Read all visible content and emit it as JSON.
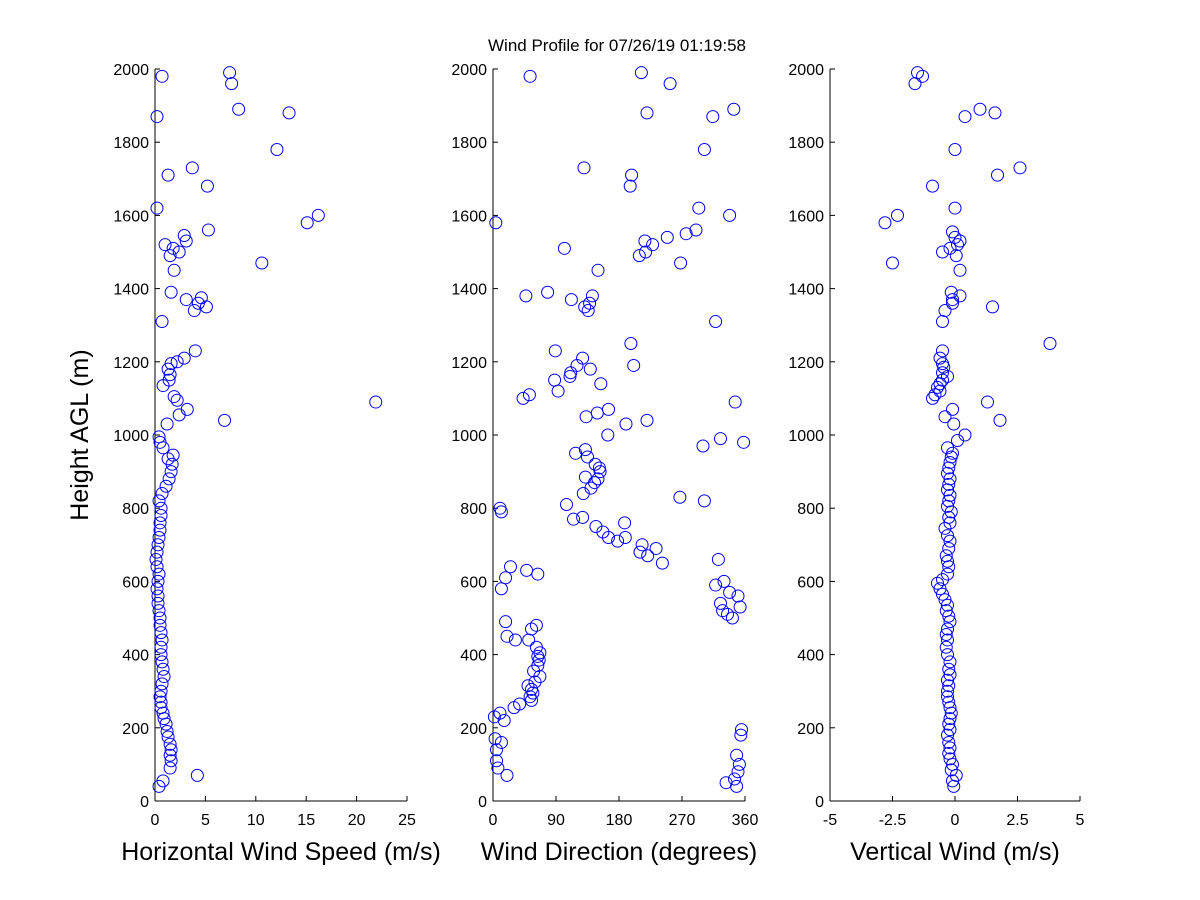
{
  "title": "Wind Profile for  07/26/19 01:19:58",
  "marker_color": "#0000ff",
  "chart_data": [
    {
      "type": "scatter",
      "xlabel": "Horizontal Wind Speed (m/s)",
      "ylabel": "Height AGL (m)",
      "xlim": [
        0,
        25
      ],
      "ylim": [
        0,
        2000
      ],
      "xticks": [
        0,
        5,
        10,
        15,
        20,
        25
      ],
      "xtick_labels": [
        "0",
        "5",
        "10",
        "15",
        "20",
        "25"
      ],
      "yticks": [
        0,
        200,
        400,
        600,
        800,
        1000,
        1200,
        1400,
        1600,
        1800,
        2000
      ],
      "ytick_labels": [
        "0",
        "200",
        "400",
        "600",
        "800",
        "1000",
        "1200",
        "1400",
        "1600",
        "1800",
        "2000"
      ],
      "grid": false,
      "points": [
        [
          0.4,
          40
        ],
        [
          0.8,
          55
        ],
        [
          4.2,
          70
        ],
        [
          1.5,
          90
        ],
        [
          1.6,
          110
        ],
        [
          1.5,
          125
        ],
        [
          1.6,
          140
        ],
        [
          1.5,
          155
        ],
        [
          1.3,
          175
        ],
        [
          1.2,
          190
        ],
        [
          1.1,
          210
        ],
        [
          0.9,
          225
        ],
        [
          0.8,
          240
        ],
        [
          0.6,
          255
        ],
        [
          0.6,
          270
        ],
        [
          0.5,
          285
        ],
        [
          0.6,
          300
        ],
        [
          0.7,
          320
        ],
        [
          0.9,
          340
        ],
        [
          0.8,
          360
        ],
        [
          0.7,
          380
        ],
        [
          0.6,
          400
        ],
        [
          0.6,
          420
        ],
        [
          0.7,
          440
        ],
        [
          0.6,
          460
        ],
        [
          0.5,
          480
        ],
        [
          0.5,
          500
        ],
        [
          0.4,
          520
        ],
        [
          0.3,
          540
        ],
        [
          0.3,
          560
        ],
        [
          0.2,
          580
        ],
        [
          0.3,
          600
        ],
        [
          0.4,
          620
        ],
        [
          0.2,
          640
        ],
        [
          0.1,
          660
        ],
        [
          0.2,
          680
        ],
        [
          0.3,
          700
        ],
        [
          0.4,
          720
        ],
        [
          0.5,
          740
        ],
        [
          0.5,
          760
        ],
        [
          0.6,
          780
        ],
        [
          0.6,
          800
        ],
        [
          0.4,
          820
        ],
        [
          0.7,
          840
        ],
        [
          1.1,
          860
        ],
        [
          1.4,
          880
        ],
        [
          1.6,
          900
        ],
        [
          1.7,
          920
        ],
        [
          1.3,
          935
        ],
        [
          1.8,
          945
        ],
        [
          0.8,
          965
        ],
        [
          0.5,
          980
        ],
        [
          0.4,
          995
        ],
        [
          1.2,
          1030
        ],
        [
          6.9,
          1040
        ],
        [
          2.4,
          1055
        ],
        [
          3.2,
          1070
        ],
        [
          2.2,
          1095
        ],
        [
          1.9,
          1105
        ],
        [
          21.9,
          1090
        ],
        [
          0.8,
          1135
        ],
        [
          1.4,
          1150
        ],
        [
          1.5,
          1165
        ],
        [
          1.3,
          1180
        ],
        [
          1.6,
          1195
        ],
        [
          2.2,
          1200
        ],
        [
          2.9,
          1210
        ],
        [
          4.0,
          1230
        ],
        [
          0.7,
          1310
        ],
        [
          5.1,
          1350
        ],
        [
          3.9,
          1340
        ],
        [
          4.3,
          1360
        ],
        [
          4.6,
          1375
        ],
        [
          3.1,
          1370
        ],
        [
          1.6,
          1390
        ],
        [
          10.6,
          1470
        ],
        [
          1.9,
          1450
        ],
        [
          1.5,
          1490
        ],
        [
          1.8,
          1510
        ],
        [
          1.0,
          1520
        ],
        [
          2.4,
          1500
        ],
        [
          3.1,
          1530
        ],
        [
          2.9,
          1545
        ],
        [
          5.3,
          1560
        ],
        [
          15.1,
          1580
        ],
        [
          16.2,
          1600
        ],
        [
          0.2,
          1620
        ],
        [
          5.2,
          1680
        ],
        [
          1.3,
          1710
        ],
        [
          3.7,
          1730
        ],
        [
          12.1,
          1780
        ],
        [
          0.2,
          1870
        ],
        [
          8.3,
          1890
        ],
        [
          13.3,
          1880
        ],
        [
          7.6,
          1960
        ],
        [
          0.7,
          1980
        ],
        [
          7.4,
          1990
        ]
      ]
    },
    {
      "type": "scatter",
      "xlabel": "Wind Direction (degrees)",
      "ylabel": "",
      "xlim": [
        0,
        360
      ],
      "ylim": [
        0,
        2000
      ],
      "xticks": [
        0,
        90,
        180,
        270,
        360
      ],
      "xtick_labels": [
        "0",
        "90",
        "180",
        "270",
        "360"
      ],
      "yticks": [
        0,
        200,
        400,
        600,
        800,
        1000,
        1200,
        1400,
        1600,
        1800,
        2000
      ],
      "ytick_labels": [
        "0",
        "200",
        "400",
        "600",
        "800",
        "1000",
        "1200",
        "1400",
        "1600",
        "1800",
        "2000"
      ],
      "grid": false,
      "points": [
        [
          348,
          40
        ],
        [
          333,
          50
        ],
        [
          345,
          60
        ],
        [
          20,
          70
        ],
        [
          350,
          80
        ],
        [
          7,
          90
        ],
        [
          352,
          100
        ],
        [
          5,
          110
        ],
        [
          348,
          125
        ],
        [
          5,
          140
        ],
        [
          12,
          160
        ],
        [
          3,
          170
        ],
        [
          354,
          180
        ],
        [
          355,
          195
        ],
        [
          16,
          220
        ],
        [
          2,
          230
        ],
        [
          10,
          240
        ],
        [
          30,
          255
        ],
        [
          38,
          265
        ],
        [
          55,
          275
        ],
        [
          53,
          285
        ],
        [
          57,
          295
        ],
        [
          55,
          305
        ],
        [
          50,
          315
        ],
        [
          60,
          325
        ],
        [
          67,
          340
        ],
        [
          58,
          355
        ],
        [
          64,
          370
        ],
        [
          66,
          385
        ],
        [
          64,
          395
        ],
        [
          67,
          405
        ],
        [
          62,
          420
        ],
        [
          51,
          440
        ],
        [
          32,
          440
        ],
        [
          20,
          450
        ],
        [
          62,
          480
        ],
        [
          55,
          470
        ],
        [
          18,
          490
        ],
        [
          342,
          500
        ],
        [
          335,
          510
        ],
        [
          328,
          520
        ],
        [
          353,
          530
        ],
        [
          325,
          540
        ],
        [
          350,
          560
        ],
        [
          338,
          570
        ],
        [
          12,
          580
        ],
        [
          318,
          590
        ],
        [
          330,
          600
        ],
        [
          18,
          610
        ],
        [
          48,
          630
        ],
        [
          64,
          620
        ],
        [
          25,
          640
        ],
        [
          242,
          650
        ],
        [
          322,
          660
        ],
        [
          221,
          670
        ],
        [
          210,
          680
        ],
        [
          233,
          690
        ],
        [
          213,
          700
        ],
        [
          178,
          710
        ],
        [
          165,
          720
        ],
        [
          189,
          720
        ],
        [
          157,
          735
        ],
        [
          147,
          750
        ],
        [
          188,
          760
        ],
        [
          128,
          775
        ],
        [
          115,
          770
        ],
        [
          105,
          810
        ],
        [
          12,
          790
        ],
        [
          10,
          800
        ],
        [
          302,
          820
        ],
        [
          267,
          830
        ],
        [
          129,
          840
        ],
        [
          140,
          855
        ],
        [
          145,
          870
        ],
        [
          150,
          880
        ],
        [
          132,
          885
        ],
        [
          153,
          900
        ],
        [
          152,
          910
        ],
        [
          146,
          920
        ],
        [
          135,
          940
        ],
        [
          118,
          950
        ],
        [
          132,
          960
        ],
        [
          300,
          970
        ],
        [
          325,
          990
        ],
        [
          358,
          980
        ],
        [
          164,
          1000
        ],
        [
          190,
          1030
        ],
        [
          220,
          1040
        ],
        [
          133,
          1050
        ],
        [
          149,
          1060
        ],
        [
          165,
          1070
        ],
        [
          346,
          1090
        ],
        [
          43,
          1100
        ],
        [
          52,
          1110
        ],
        [
          93,
          1120
        ],
        [
          88,
          1150
        ],
        [
          154,
          1140
        ],
        [
          111,
          1170
        ],
        [
          110,
          1160
        ],
        [
          139,
          1180
        ],
        [
          120,
          1190
        ],
        [
          201,
          1190
        ],
        [
          128,
          1210
        ],
        [
          89,
          1230
        ],
        [
          197,
          1250
        ],
        [
          318,
          1310
        ],
        [
          136,
          1340
        ],
        [
          131,
          1350
        ],
        [
          138,
          1360
        ],
        [
          112,
          1370
        ],
        [
          142,
          1380
        ],
        [
          47,
          1380
        ],
        [
          78,
          1390
        ],
        [
          150,
          1450
        ],
        [
          268,
          1470
        ],
        [
          209,
          1490
        ],
        [
          218,
          1500
        ],
        [
          102,
          1510
        ],
        [
          228,
          1520
        ],
        [
          217,
          1530
        ],
        [
          249,
          1540
        ],
        [
          276,
          1550
        ],
        [
          290,
          1560
        ],
        [
          4,
          1580
        ],
        [
          338,
          1600
        ],
        [
          294,
          1620
        ],
        [
          196,
          1680
        ],
        [
          198,
          1710
        ],
        [
          130,
          1730
        ],
        [
          302,
          1780
        ],
        [
          314,
          1870
        ],
        [
          344,
          1890
        ],
        [
          220,
          1880
        ],
        [
          53,
          1980
        ],
        [
          253,
          1960
        ],
        [
          212,
          1990
        ]
      ]
    },
    {
      "type": "scatter",
      "xlabel": "Vertical Wind (m/s)",
      "ylabel": "",
      "xlim": [
        -5,
        5
      ],
      "ylim": [
        0,
        2000
      ],
      "xticks": [
        -5,
        -2.5,
        0,
        2.5,
        5
      ],
      "xtick_labels": [
        "-5",
        "-2.5",
        "0",
        "2.5",
        "5"
      ],
      "yticks": [
        0,
        200,
        400,
        600,
        800,
        1000,
        1200,
        1400,
        1600,
        1800,
        2000
      ],
      "ytick_labels": [
        "0",
        "200",
        "400",
        "600",
        "800",
        "1000",
        "1200",
        "1400",
        "1600",
        "1800",
        "2000"
      ],
      "grid": false,
      "points": [
        [
          -0.05,
          40
        ],
        [
          -0.1,
          55
        ],
        [
          0.05,
          70
        ],
        [
          -0.15,
          85
        ],
        [
          -0.1,
          100
        ],
        [
          -0.2,
          115
        ],
        [
          -0.25,
          130
        ],
        [
          -0.2,
          145
        ],
        [
          -0.25,
          160
        ],
        [
          -0.3,
          180
        ],
        [
          -0.2,
          195
        ],
        [
          -0.25,
          210
        ],
        [
          -0.2,
          225
        ],
        [
          -0.15,
          240
        ],
        [
          -0.2,
          255
        ],
        [
          -0.25,
          270
        ],
        [
          -0.3,
          285
        ],
        [
          -0.3,
          300
        ],
        [
          -0.25,
          315
        ],
        [
          -0.3,
          330
        ],
        [
          -0.2,
          345
        ],
        [
          -0.25,
          360
        ],
        [
          -0.2,
          380
        ],
        [
          -0.3,
          400
        ],
        [
          -0.35,
          420
        ],
        [
          -0.3,
          440
        ],
        [
          -0.35,
          455
        ],
        [
          -0.3,
          470
        ],
        [
          -0.2,
          490
        ],
        [
          -0.25,
          505
        ],
        [
          -0.35,
          520
        ],
        [
          -0.3,
          535
        ],
        [
          -0.4,
          550
        ],
        [
          -0.5,
          565
        ],
        [
          -0.6,
          580
        ],
        [
          -0.7,
          595
        ],
        [
          -0.5,
          605
        ],
        [
          -0.3,
          620
        ],
        [
          -0.25,
          640
        ],
        [
          -0.3,
          655
        ],
        [
          -0.35,
          670
        ],
        [
          -0.25,
          690
        ],
        [
          -0.2,
          710
        ],
        [
          -0.3,
          725
        ],
        [
          -0.4,
          745
        ],
        [
          -0.2,
          760
        ],
        [
          -0.25,
          775
        ],
        [
          -0.15,
          790
        ],
        [
          -0.3,
          805
        ],
        [
          -0.25,
          820
        ],
        [
          -0.2,
          835
        ],
        [
          -0.3,
          850
        ],
        [
          -0.25,
          865
        ],
        [
          -0.2,
          880
        ],
        [
          -0.3,
          895
        ],
        [
          -0.25,
          910
        ],
        [
          -0.2,
          925
        ],
        [
          -0.15,
          940
        ],
        [
          -0.1,
          950
        ],
        [
          -0.3,
          965
        ],
        [
          0.1,
          985
        ],
        [
          0.4,
          1000
        ],
        [
          -0.05,
          1030
        ],
        [
          -0.4,
          1050
        ],
        [
          -0.1,
          1070
        ],
        [
          1.3,
          1090
        ],
        [
          1.8,
          1040
        ],
        [
          -0.9,
          1100
        ],
        [
          -0.8,
          1110
        ],
        [
          -0.6,
          1120
        ],
        [
          -0.7,
          1130
        ],
        [
          -0.6,
          1140
        ],
        [
          -0.5,
          1150
        ],
        [
          -0.3,
          1160
        ],
        [
          -0.5,
          1170
        ],
        [
          -0.45,
          1185
        ],
        [
          -0.5,
          1195
        ],
        [
          -0.6,
          1210
        ],
        [
          -0.5,
          1230
        ],
        [
          3.8,
          1250
        ],
        [
          -0.5,
          1310
        ],
        [
          -0.4,
          1340
        ],
        [
          1.5,
          1350
        ],
        [
          -0.1,
          1360
        ],
        [
          0.2,
          1380
        ],
        [
          -0.1,
          1370
        ],
        [
          -0.15,
          1390
        ],
        [
          -2.5,
          1470
        ],
        [
          0.2,
          1450
        ],
        [
          -0.5,
          1500
        ],
        [
          -0.2,
          1510
        ],
        [
          0.05,
          1490
        ],
        [
          0.1,
          1520
        ],
        [
          0.2,
          1530
        ],
        [
          0.0,
          1540
        ],
        [
          -0.1,
          1555
        ],
        [
          -2.8,
          1580
        ],
        [
          -2.3,
          1600
        ],
        [
          0.0,
          1620
        ],
        [
          -0.9,
          1680
        ],
        [
          1.7,
          1710
        ],
        [
          2.6,
          1730
        ],
        [
          0.0,
          1780
        ],
        [
          0.4,
          1870
        ],
        [
          1.0,
          1890
        ],
        [
          1.6,
          1880
        ],
        [
          -1.6,
          1960
        ],
        [
          -1.5,
          1990
        ],
        [
          -1.3,
          1980
        ]
      ]
    }
  ]
}
